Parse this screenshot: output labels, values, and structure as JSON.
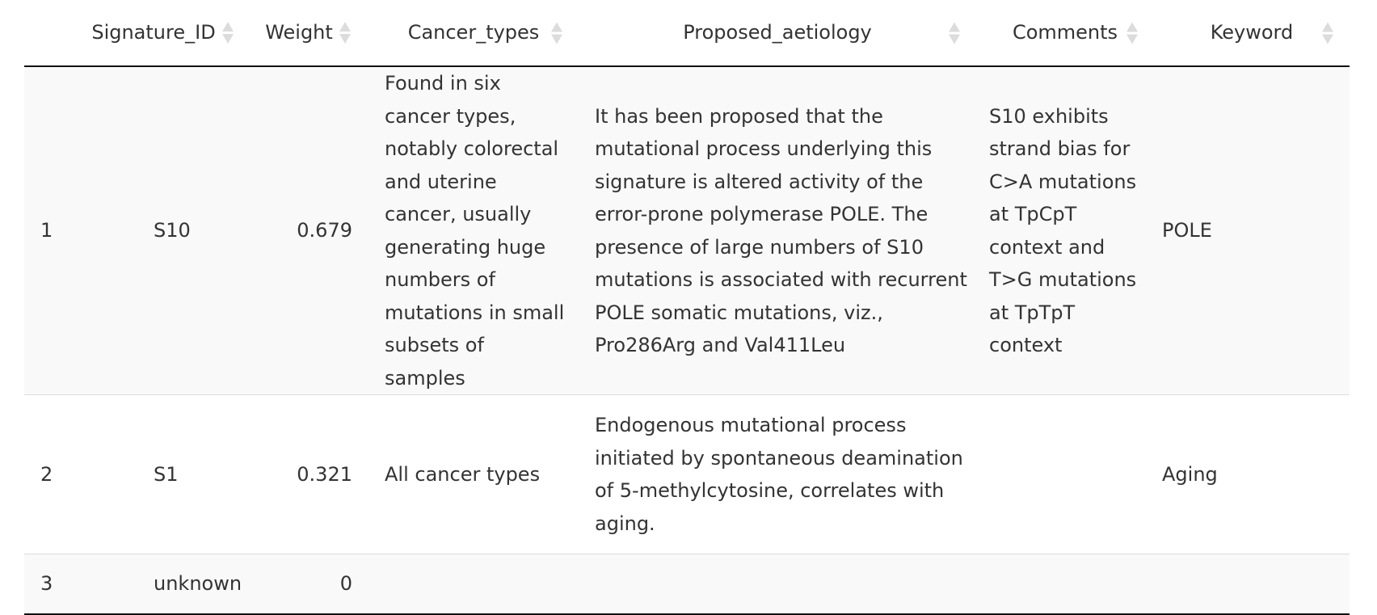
{
  "table": {
    "columns": [
      {
        "key": "index",
        "label": ""
      },
      {
        "key": "signature_id",
        "label": "Signature_ID"
      },
      {
        "key": "weight",
        "label": "Weight"
      },
      {
        "key": "cancer_types",
        "label": "Cancer_types"
      },
      {
        "key": "proposed_aetiology",
        "label": "Proposed_aetiology"
      },
      {
        "key": "comments",
        "label": "Comments"
      },
      {
        "key": "keyword",
        "label": "Keyword"
      }
    ],
    "rows": [
      {
        "index": "1",
        "signature_id": "S10",
        "weight": "0.679",
        "cancer_types": "Found in six cancer types, notably colorectal and uterine cancer, usually generating huge numbers of mutations in small subsets of samples",
        "proposed_aetiology": "It has been proposed that the mutational process underlying this signature is altered activity of the error-prone polymerase POLE. The presence of large numbers of S10 mutations is associated with recurrent POLE somatic mutations, viz., Pro286Arg and Val411Leu",
        "comments": "S10 exhibits strand bias for C>A mutations at TpCpT context and T>G mutations at TpTpT context",
        "keyword": "POLE"
      },
      {
        "index": "2",
        "signature_id": "S1",
        "weight": "0.321",
        "cancer_types": "All cancer types",
        "proposed_aetiology": "Endogenous mutational process initiated by spontaneous deamination of 5-methylcytosine, correlates with aging.",
        "comments": "",
        "keyword": "Aging"
      },
      {
        "index": "3",
        "signature_id": "unknown",
        "weight": "0",
        "cancer_types": "",
        "proposed_aetiology": "",
        "comments": "",
        "keyword": ""
      }
    ]
  },
  "icons": {
    "sort": "sort-icon"
  },
  "colors": {
    "striped_row": "#f9f9f9",
    "header_rule": "#111111",
    "row_rule": "#dddddd",
    "sort_arrow": "#dcdcdc",
    "text": "#333333"
  }
}
